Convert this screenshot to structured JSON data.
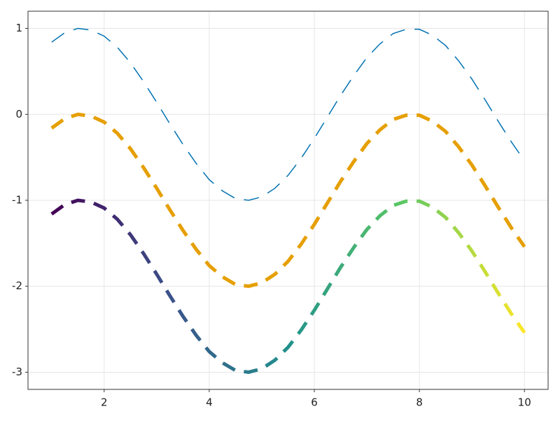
{
  "chart_data": {
    "type": "line",
    "x": [
      1.0,
      1.25,
      1.5,
      1.75,
      2.0,
      2.25,
      2.5,
      2.75,
      3.0,
      3.25,
      3.5,
      3.75,
      4.0,
      4.25,
      4.5,
      4.75,
      5.0,
      5.25,
      5.5,
      5.75,
      6.0,
      6.25,
      6.5,
      6.75,
      7.0,
      7.25,
      7.5,
      7.75,
      8.0,
      8.25,
      8.5,
      8.75,
      9.0,
      9.25,
      9.5,
      9.75,
      10.0
    ],
    "series": [
      {
        "color": "#0072b2",
        "linewidth": 1.5,
        "dash": [
          22,
          14
        ],
        "values": [
          0.84,
          0.95,
          1.0,
          0.98,
          0.91,
          0.78,
          0.6,
          0.38,
          0.14,
          -0.11,
          -0.35,
          -0.57,
          -0.76,
          -0.89,
          -0.98,
          -1.0,
          -0.96,
          -0.86,
          -0.71,
          -0.51,
          -0.28,
          -0.03,
          0.22,
          0.45,
          0.66,
          0.82,
          0.94,
          0.99,
          0.99,
          0.92,
          0.8,
          0.62,
          0.41,
          0.17,
          -0.08,
          -0.32,
          -0.54
        ]
      },
      {
        "color": "#e69f00",
        "linewidth": 5,
        "dash": [
          20,
          13
        ],
        "values": [
          -0.16,
          -0.05,
          0.0,
          -0.02,
          -0.09,
          -0.22,
          -0.4,
          -0.62,
          -0.86,
          -1.11,
          -1.35,
          -1.57,
          -1.76,
          -1.89,
          -1.98,
          -2.0,
          -1.96,
          -1.86,
          -1.71,
          -1.51,
          -1.28,
          -1.03,
          -0.78,
          -0.55,
          -0.34,
          -0.18,
          -0.06,
          -0.01,
          -0.01,
          -0.08,
          -0.2,
          -0.38,
          -0.59,
          -0.83,
          -1.08,
          -1.32,
          -1.54
        ]
      },
      {
        "color": [
          "#440154",
          "#3b528b",
          "#21918c",
          "#5ec962",
          "#fde725"
        ],
        "linewidth": 5,
        "dash": [
          20,
          13
        ],
        "values": [
          -1.16,
          -1.05,
          -1.0,
          -1.02,
          -1.09,
          -1.22,
          -1.4,
          -1.62,
          -1.86,
          -2.11,
          -2.35,
          -2.57,
          -2.76,
          -2.89,
          -2.98,
          -3.0,
          -2.96,
          -2.86,
          -2.71,
          -2.51,
          -2.28,
          -2.03,
          -1.78,
          -1.55,
          -1.34,
          -1.18,
          -1.06,
          -1.01,
          -1.01,
          -1.08,
          -1.2,
          -1.38,
          -1.59,
          -1.83,
          -2.08,
          -2.32,
          -2.54
        ]
      }
    ],
    "xlim": [
      0.55,
      10.45
    ],
    "xticks": [
      2,
      4,
      6,
      8,
      10
    ],
    "ylim": [
      -3.2,
      1.2
    ],
    "yticks": [
      -3,
      -2,
      -1,
      0,
      1
    ],
    "grid": true
  }
}
